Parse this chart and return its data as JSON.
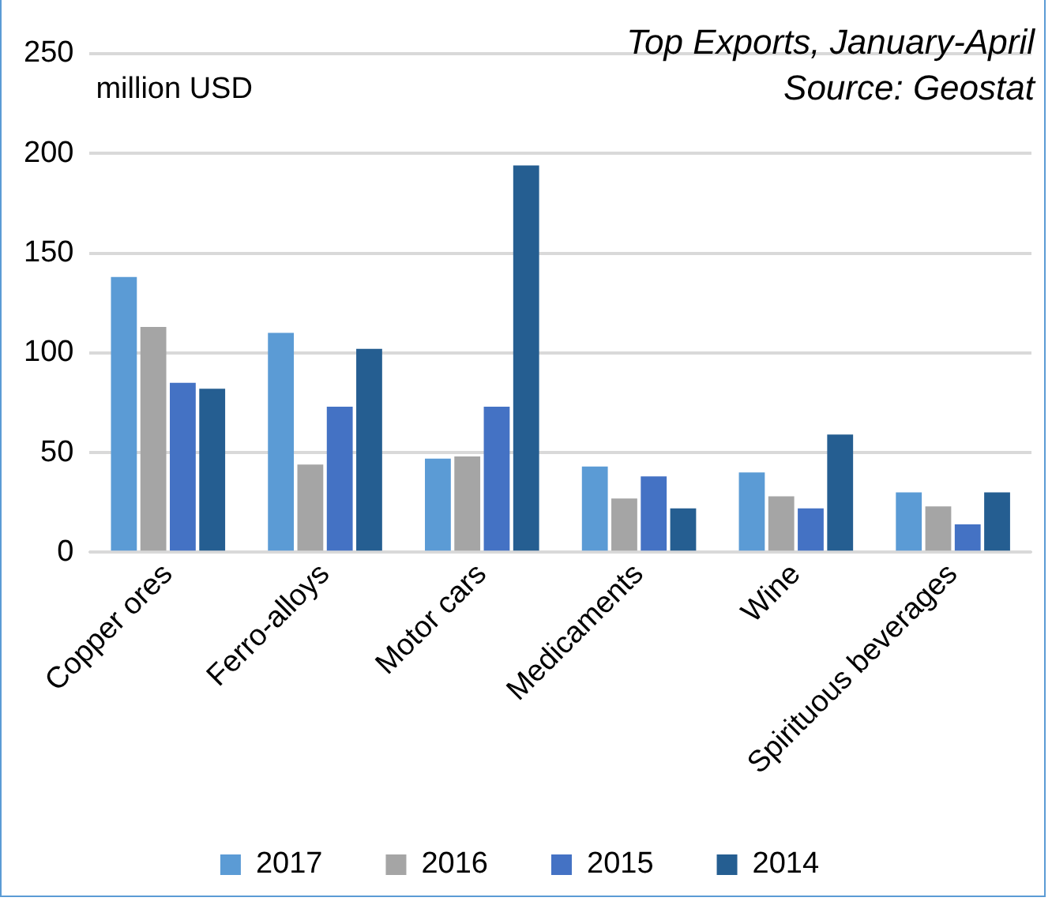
{
  "chart_data": {
    "type": "bar",
    "title": "Top Exports, January-April",
    "ylabel": "million USD",
    "annotations": [
      "Source: Geostat"
    ],
    "categories": [
      "Copper ores",
      "Ferro-alloys",
      "Motor cars",
      "Medicaments",
      "Wine",
      "Spirituous beverages"
    ],
    "series": [
      {
        "name": "2017",
        "color": "#5b9bd5",
        "values": [
          138,
          110,
          47,
          43,
          40,
          30
        ]
      },
      {
        "name": "2016",
        "color": "#a5a5a5",
        "values": [
          113,
          44,
          48,
          27,
          28,
          23
        ]
      },
      {
        "name": "2015",
        "color": "#4472c4",
        "values": [
          85,
          73,
          73,
          38,
          22,
          14
        ]
      },
      {
        "name": "2014",
        "color": "#255e91",
        "values": [
          82,
          102,
          194,
          22,
          59,
          30
        ]
      }
    ],
    "ylim": [
      0,
      250
    ],
    "yticks": [
      0,
      50,
      100,
      150,
      200,
      250
    ],
    "grid": "y",
    "legend": "bottom"
  }
}
